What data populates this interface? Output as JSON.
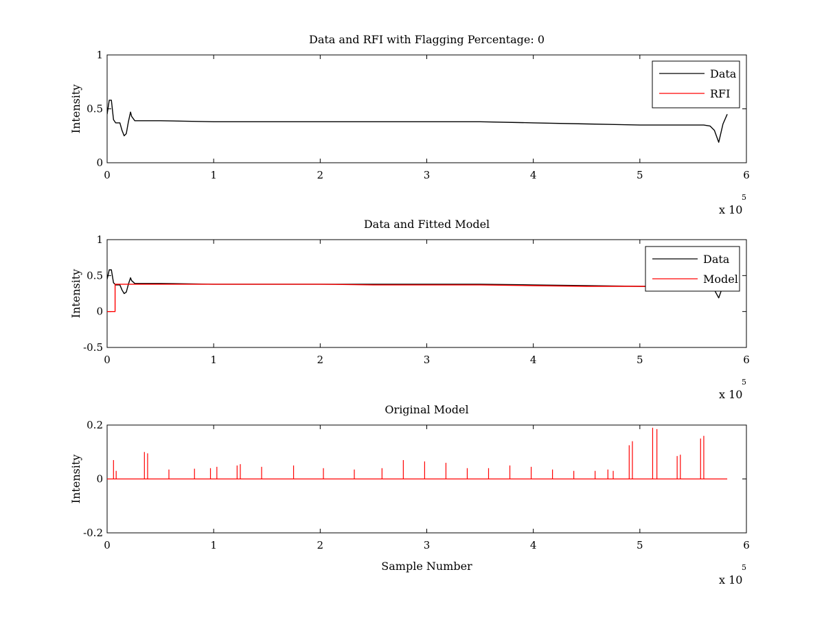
{
  "colors": {
    "data": "#000000",
    "rfi": "#ff0000",
    "model": "#ff0000",
    "axes": "#000000"
  },
  "chart_data": [
    {
      "type": "line",
      "title": "Data and RFI with Flagging Percentage: 0",
      "xlabel": "",
      "ylabel": "Intensity",
      "xlim": [
        0,
        600000
      ],
      "ylim": [
        0,
        1
      ],
      "xticks": [
        0,
        1,
        2,
        3,
        4,
        5,
        6
      ],
      "yticks": [
        0,
        0.5,
        1
      ],
      "x_multiplier": "x 10",
      "x_exponent": "5",
      "legend_position": "top-right",
      "series": [
        {
          "name": "Data",
          "color": "#000000",
          "x": [
            0,
            2000,
            4000,
            6000,
            8000,
            12000,
            14000,
            16000,
            18000,
            20000,
            22000,
            23000,
            26000,
            50000,
            100000,
            150000,
            200000,
            250000,
            300000,
            350000,
            400000,
            450000,
            500000,
            550000,
            560000,
            566000,
            570000,
            574000,
            578000,
            582000
          ],
          "y": [
            0.45,
            0.58,
            0.58,
            0.4,
            0.37,
            0.37,
            0.3,
            0.25,
            0.27,
            0.38,
            0.47,
            0.43,
            0.39,
            0.39,
            0.38,
            0.38,
            0.38,
            0.38,
            0.38,
            0.38,
            0.37,
            0.36,
            0.35,
            0.35,
            0.35,
            0.34,
            0.3,
            0.19,
            0.36,
            0.45
          ]
        },
        {
          "name": "RFI",
          "color": "#ff0000",
          "x": [],
          "y": []
        }
      ]
    },
    {
      "type": "line",
      "title": "Data and Fitted Model",
      "xlabel": "",
      "ylabel": "Intensity",
      "xlim": [
        0,
        600000
      ],
      "ylim": [
        -0.5,
        1
      ],
      "xticks": [
        0,
        1,
        2,
        3,
        4,
        5,
        6
      ],
      "yticks": [
        -0.5,
        0,
        0.5,
        1
      ],
      "x_multiplier": "x 10",
      "x_exponent": "5",
      "legend_position": "top-right",
      "series": [
        {
          "name": "Data",
          "color": "#000000",
          "x": [
            0,
            2000,
            4000,
            6000,
            8000,
            12000,
            14000,
            16000,
            18000,
            20000,
            22000,
            23000,
            26000,
            50000,
            100000,
            150000,
            200000,
            250000,
            300000,
            350000,
            400000,
            450000,
            500000,
            550000,
            560000,
            566000,
            570000,
            574000,
            578000,
            582000
          ],
          "y": [
            0.45,
            0.58,
            0.58,
            0.4,
            0.37,
            0.37,
            0.3,
            0.25,
            0.27,
            0.38,
            0.47,
            0.43,
            0.39,
            0.39,
            0.38,
            0.38,
            0.38,
            0.38,
            0.38,
            0.38,
            0.37,
            0.36,
            0.35,
            0.35,
            0.35,
            0.34,
            0.3,
            0.19,
            0.36,
            0.45
          ]
        },
        {
          "name": "Model",
          "color": "#ff0000",
          "x": [
            0,
            7500,
            7500,
            50000,
            100000,
            150000,
            200000,
            250000,
            300000,
            350000,
            400000,
            450000,
            500000,
            550000,
            582000
          ],
          "y": [
            0,
            0,
            0.38,
            0.38,
            0.38,
            0.38,
            0.38,
            0.37,
            0.37,
            0.37,
            0.36,
            0.35,
            0.35,
            0.34,
            0.34
          ]
        }
      ]
    },
    {
      "type": "line",
      "title": "Original Model",
      "xlabel": "Sample Number",
      "ylabel": "Intensity",
      "xlim": [
        0,
        600000
      ],
      "ylim": [
        -0.2,
        0.2
      ],
      "xticks": [
        0,
        1,
        2,
        3,
        4,
        5,
        6
      ],
      "yticks": [
        -0.2,
        0,
        0.2
      ],
      "x_multiplier": "x 10",
      "x_exponent": "5",
      "series": [
        {
          "name": "Original Model",
          "color": "#ff0000",
          "baseline": 0,
          "x_end": 582000,
          "spikes_x": [
            6000,
            8500,
            35000,
            38000,
            58000,
            82000,
            97000,
            103000,
            122000,
            125000,
            145000,
            175000,
            203000,
            232000,
            258000,
            278000,
            298000,
            318000,
            338000,
            358000,
            378000,
            398000,
            418000,
            438000,
            458000,
            470000,
            475000,
            490000,
            493000,
            512000,
            516000,
            535000,
            538000,
            557000,
            560000
          ],
          "spikes_y": [
            0.07,
            0.03,
            0.1,
            0.095,
            0.035,
            0.038,
            0.04,
            0.045,
            0.05,
            0.055,
            0.045,
            0.05,
            0.04,
            0.035,
            0.04,
            0.07,
            0.065,
            0.06,
            0.04,
            0.04,
            0.05,
            0.045,
            0.035,
            0.03,
            0.03,
            0.035,
            0.03,
            0.125,
            0.14,
            0.19,
            0.185,
            0.085,
            0.09,
            0.15,
            0.16
          ]
        }
      ]
    }
  ]
}
